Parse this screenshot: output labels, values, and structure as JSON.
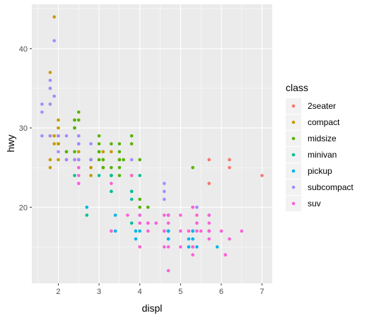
{
  "chart_data": {
    "type": "scatter",
    "title": "",
    "xlabel": "displ",
    "ylabel": "hwy",
    "xlim": [
      1.35,
      7.25
    ],
    "ylim": [
      10.4,
      45.6
    ],
    "x_ticks": [
      2,
      3,
      4,
      5,
      6,
      7
    ],
    "y_ticks": [
      20,
      30,
      40
    ],
    "x_tick_labels": [
      "2",
      "3",
      "4",
      "5",
      "6",
      "7"
    ],
    "y_tick_labels": [
      "20",
      "30",
      "40"
    ],
    "grid": true,
    "legend": {
      "title": "class",
      "position": "right"
    },
    "series": [
      {
        "name": "2seater",
        "color": "#F8766D",
        "points": [
          [
            5.7,
            26
          ],
          [
            5.7,
            23
          ],
          [
            6.2,
            26
          ],
          [
            6.2,
            25
          ],
          [
            7.0,
            24
          ]
        ]
      },
      {
        "name": "compact",
        "color": "#C49A00",
        "points": [
          [
            1.8,
            29
          ],
          [
            1.8,
            29
          ],
          [
            2.0,
            31
          ],
          [
            2.0,
            30
          ],
          [
            2.8,
            26
          ],
          [
            2.8,
            26
          ],
          [
            3.1,
            27
          ],
          [
            1.8,
            26
          ],
          [
            1.8,
            25
          ],
          [
            2.0,
            28
          ],
          [
            2.0,
            29
          ],
          [
            2.8,
            25
          ],
          [
            2.8,
            25
          ],
          [
            3.1,
            25
          ],
          [
            3.1,
            25
          ],
          [
            2.2,
            27
          ],
          [
            2.2,
            26
          ],
          [
            2.4,
            30
          ],
          [
            2.4,
            31
          ],
          [
            3.0,
            26
          ],
          [
            1.8,
            37
          ],
          [
            1.8,
            35
          ],
          [
            1.8,
            33
          ],
          [
            1.8,
            29
          ],
          [
            2.0,
            28
          ],
          [
            2.0,
            29
          ],
          [
            2.5,
            27
          ],
          [
            2.5,
            26
          ],
          [
            2.8,
            24
          ],
          [
            3.3,
            27
          ],
          [
            3.3,
            24
          ],
          [
            1.9,
            44
          ],
          [
            2.0,
            29
          ],
          [
            2.0,
            26
          ],
          [
            2.0,
            29
          ],
          [
            2.0,
            28
          ],
          [
            2.5,
            29
          ],
          [
            2.8,
            26
          ],
          [
            1.9,
            29
          ],
          [
            1.9,
            28
          ],
          [
            2.0,
            29
          ]
        ]
      },
      {
        "name": "midsize",
        "color": "#53B400",
        "points": [
          [
            2.4,
            31
          ],
          [
            2.4,
            30
          ],
          [
            3.0,
            29
          ],
          [
            3.0,
            28
          ],
          [
            3.5,
            26
          ],
          [
            3.5,
            27
          ],
          [
            3.3,
            28
          ],
          [
            3.8,
            24
          ],
          [
            2.4,
            26
          ],
          [
            2.4,
            27
          ],
          [
            2.5,
            32
          ],
          [
            2.5,
            31
          ],
          [
            3.0,
            27
          ],
          [
            3.3,
            25
          ],
          [
            3.5,
            26
          ],
          [
            3.8,
            29
          ],
          [
            3.8,
            28
          ],
          [
            4.0,
            26
          ],
          [
            2.5,
            25
          ],
          [
            3.5,
            25
          ],
          [
            3.5,
            26
          ],
          [
            3.5,
            26
          ],
          [
            2.2,
            26
          ],
          [
            2.2,
            27
          ],
          [
            2.4,
            31
          ],
          [
            2.4,
            30
          ],
          [
            3.1,
            26
          ],
          [
            3.1,
            26
          ],
          [
            2.5,
            26
          ],
          [
            2.5,
            28
          ],
          [
            3.0,
            26
          ],
          [
            3.0,
            27
          ],
          [
            3.5,
            24
          ],
          [
            3.6,
            26
          ],
          [
            3.5,
            28
          ],
          [
            5.3,
            25
          ],
          [
            4.0,
            20
          ],
          [
            4.2,
            20
          ],
          [
            4.0,
            21
          ],
          [
            2.8,
            26
          ],
          [
            3.1,
            25
          ]
        ]
      },
      {
        "name": "minivan",
        "color": "#00C094",
        "points": [
          [
            2.4,
            24
          ],
          [
            3.0,
            24
          ],
          [
            3.3,
            22
          ],
          [
            3.3,
            24
          ],
          [
            3.3,
            24
          ],
          [
            3.3,
            22
          ],
          [
            3.3,
            24
          ],
          [
            3.8,
            22
          ],
          [
            3.8,
            22
          ],
          [
            3.8,
            21
          ],
          [
            4.0,
            24
          ],
          [
            2.7,
            19
          ],
          [
            3.8,
            18
          ],
          [
            5.3,
            17
          ],
          [
            5.3,
            16
          ]
        ]
      },
      {
        "name": "pickup",
        "color": "#00B6EB",
        "points": [
          [
            2.7,
            20
          ],
          [
            3.4,
            19
          ],
          [
            4.0,
            17
          ],
          [
            4.7,
            17
          ],
          [
            4.7,
            19
          ],
          [
            4.7,
            19
          ],
          [
            5.7,
            19
          ],
          [
            3.4,
            17
          ],
          [
            4.7,
            17
          ],
          [
            4.7,
            17
          ],
          [
            5.2,
            16
          ],
          [
            5.2,
            15
          ],
          [
            3.9,
            17
          ],
          [
            3.9,
            16
          ],
          [
            4.7,
            16
          ],
          [
            4.7,
            17
          ],
          [
            5.2,
            15
          ],
          [
            5.7,
            17
          ],
          [
            5.9,
            15
          ],
          [
            4.0,
            19
          ],
          [
            4.7,
            17
          ],
          [
            4.7,
            16
          ],
          [
            5.4,
            15
          ],
          [
            5.3,
            17
          ],
          [
            5.3,
            16
          ]
        ]
      },
      {
        "name": "subcompact",
        "color": "#A58AFF",
        "points": [
          [
            1.8,
            36
          ],
          [
            1.8,
            33
          ],
          [
            1.8,
            35
          ],
          [
            1.8,
            29
          ],
          [
            1.6,
            33
          ],
          [
            1.6,
            32
          ],
          [
            1.6,
            29
          ],
          [
            1.9,
            41
          ],
          [
            1.9,
            34
          ],
          [
            2.0,
            27
          ],
          [
            2.2,
            29
          ],
          [
            2.5,
            26
          ],
          [
            2.5,
            28
          ],
          [
            4.6,
            22
          ],
          [
            4.6,
            23
          ],
          [
            4.6,
            21
          ],
          [
            5.4,
            20
          ],
          [
            5.4,
            18
          ],
          [
            5.4,
            20
          ],
          [
            3.8,
            26
          ],
          [
            2.0,
            29
          ],
          [
            2.4,
            26
          ],
          [
            2.5,
            29
          ],
          [
            2.5,
            29
          ],
          [
            2.8,
            28
          ],
          [
            2.8,
            26
          ],
          [
            2.2,
            26
          ],
          [
            2.2,
            26
          ],
          [
            2.5,
            28
          ]
        ]
      },
      {
        "name": "suv",
        "color": "#FB61D7",
        "points": [
          [
            5.3,
            20
          ],
          [
            5.3,
            15
          ],
          [
            5.3,
            20
          ],
          [
            5.7,
            17
          ],
          [
            6.0,
            17
          ],
          [
            5.7,
            17
          ],
          [
            5.7,
            19
          ],
          [
            6.2,
            16
          ],
          [
            6.5,
            17
          ],
          [
            4.7,
            12
          ],
          [
            5.7,
            16
          ],
          [
            6.1,
            14
          ],
          [
            4.2,
            18
          ],
          [
            4.6,
            17
          ],
          [
            5.0,
            17
          ],
          [
            5.4,
            17
          ],
          [
            4.0,
            18
          ],
          [
            4.0,
            18
          ],
          [
            4.6,
            17
          ],
          [
            5.0,
            15
          ],
          [
            4.2,
            17
          ],
          [
            4.4,
            18
          ],
          [
            4.6,
            19
          ],
          [
            5.0,
            19
          ],
          [
            5.2,
            17
          ],
          [
            3.3,
            17
          ],
          [
            3.3,
            17
          ],
          [
            3.7,
            19
          ],
          [
            4.0,
            15
          ],
          [
            4.7,
            15
          ],
          [
            4.7,
            19
          ],
          [
            5.7,
            17
          ],
          [
            5.5,
            17
          ],
          [
            2.5,
            25
          ],
          [
            2.5,
            23
          ],
          [
            2.5,
            23
          ],
          [
            2.5,
            24
          ],
          [
            4.0,
            19
          ],
          [
            4.7,
            19
          ],
          [
            4.0,
            15
          ],
          [
            4.6,
            15
          ],
          [
            5.4,
            19
          ],
          [
            5.4,
            18
          ],
          [
            5.7,
            18
          ],
          [
            6.1,
            14
          ],
          [
            4.2,
            18
          ],
          [
            4.4,
            18
          ],
          [
            4.7,
            18
          ],
          [
            3.3,
            23
          ],
          [
            3.8,
            24
          ],
          [
            5.3,
            14
          ],
          [
            5.3,
            15
          ]
        ]
      }
    ]
  }
}
